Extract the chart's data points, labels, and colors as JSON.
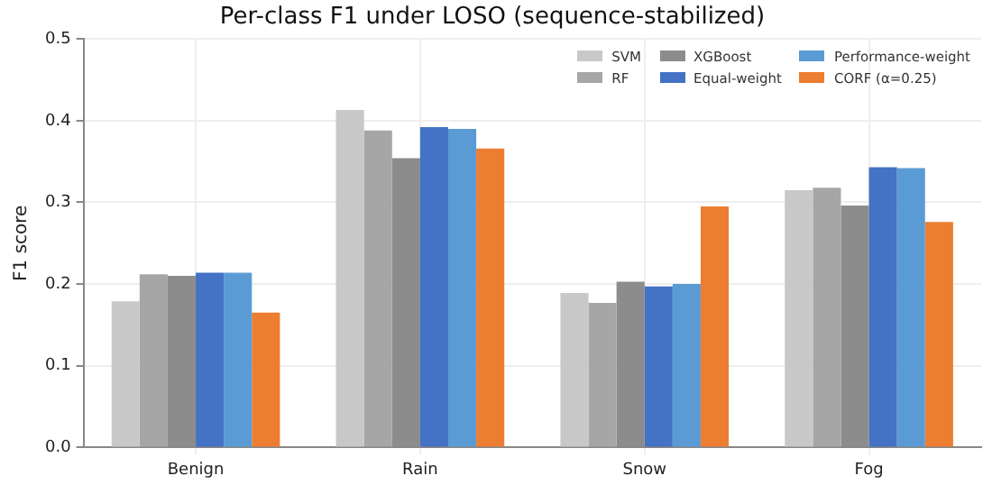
{
  "chart_data": {
    "type": "bar",
    "title": "Per-class F1 under LOSO (sequence-stabilized)",
    "ylabel": "F1 score",
    "categories": [
      "Benign",
      "Rain",
      "Snow",
      "Fog"
    ],
    "series": [
      {
        "name": "SVM",
        "color": "#c8c8c8",
        "values": [
          0.179,
          0.413,
          0.189,
          0.315
        ]
      },
      {
        "name": "RF",
        "color": "#a6a6a6",
        "values": [
          0.212,
          0.388,
          0.177,
          0.318
        ]
      },
      {
        "name": "XGBoost",
        "color": "#8c8c8c",
        "values": [
          0.21,
          0.354,
          0.203,
          0.296
        ]
      },
      {
        "name": "Equal-weight",
        "color": "#4472c4",
        "values": [
          0.214,
          0.392,
          0.197,
          0.343
        ]
      },
      {
        "name": "Performance-weight",
        "color": "#5b9bd5",
        "values": [
          0.214,
          0.39,
          0.2,
          0.342
        ]
      },
      {
        "name": "CORF (α=0.25)",
        "color": "#ed7d31",
        "values": [
          0.165,
          0.366,
          0.295,
          0.276
        ]
      }
    ],
    "ylim": [
      0,
      0.5
    ],
    "yticks": [
      {
        "value": 0,
        "label": "0.0"
      },
      0.1,
      0.2,
      0.3,
      0.4,
      0.5
    ],
    "grid": true,
    "legend": "top right"
  }
}
